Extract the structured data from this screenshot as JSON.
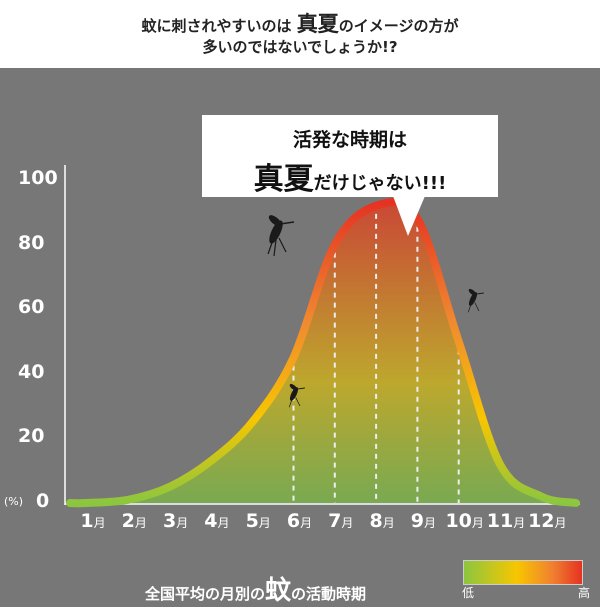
{
  "header": {
    "line1_pre": "蚊に刺されやすいのは ",
    "line1_emph": "真夏",
    "line1_post": "のイメージの方が",
    "line2": "多いのではないでしょうか!?"
  },
  "callout": {
    "line1": "活発な時期は",
    "emph": "真夏",
    "rest": "だけじゃない!!!"
  },
  "caption": {
    "pre": "全国平均の月別の",
    "emph": "蚊",
    "post": "の活動時期"
  },
  "legend": {
    "low": "低",
    "high": "高",
    "colors": [
      "#8cc63f",
      "#f7c600",
      "#f08030",
      "#e53222"
    ]
  },
  "chart_data": {
    "type": "area",
    "ylabel": "(%)",
    "ylim": [
      0,
      100
    ],
    "yticks": [
      "0",
      "20",
      "40",
      "60",
      "80",
      "100"
    ],
    "categories": [
      "1",
      "2",
      "3",
      "4",
      "5",
      "6",
      "7",
      "8",
      "9",
      "10",
      "11",
      "12"
    ],
    "month_suffix": "月",
    "values": [
      0,
      1,
      5,
      13,
      25,
      45,
      80,
      92,
      88,
      50,
      12,
      2
    ],
    "dashed_months": [
      6,
      7,
      8,
      9,
      10
    ],
    "grid": false
  },
  "icons": [
    "mosquito-icon",
    "mosquito-icon",
    "mosquito-icon"
  ]
}
